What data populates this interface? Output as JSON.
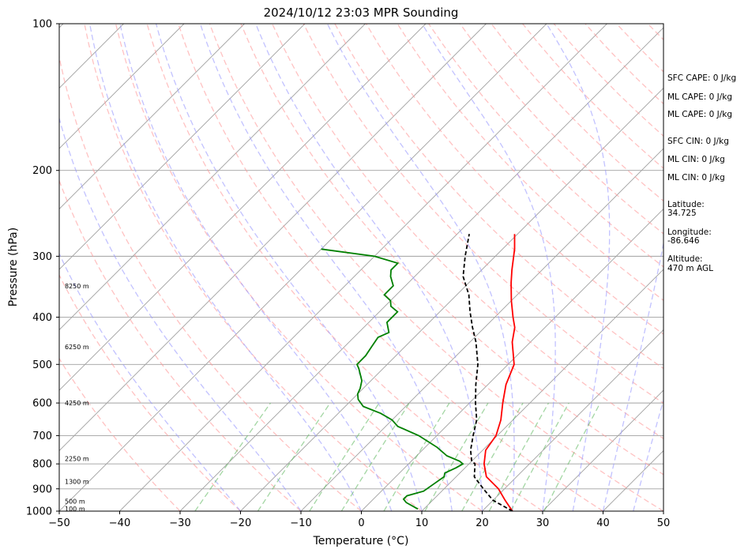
{
  "chart_data": {
    "type": "line",
    "title": "2024/10/12 23:03 MPR Sounding",
    "xlabel": "Temperature (°C)",
    "ylabel": "Pressure (hPa)",
    "xlim": [
      -50,
      50
    ],
    "ylim": [
      1000,
      100
    ],
    "y_scale": "log",
    "x_ticks": [
      "−50",
      "−40",
      "−30",
      "−20",
      "−10",
      "0",
      "10",
      "20",
      "30",
      "40",
      "50"
    ],
    "y_ticks": [
      "100",
      "200",
      "300",
      "400",
      "500",
      "600",
      "700",
      "800",
      "900",
      "1000"
    ],
    "colors": {
      "temperature": "#ff0000",
      "dewpoint": "#008000",
      "parcel": "#000000",
      "dry_adiabats": "#ff9999",
      "moist_adiabats": "#9999ff",
      "mixing_ratio": "#66bb66",
      "isotherms": "#a0a0a0",
      "isobars": "#a0a0a0"
    },
    "series": [
      {
        "key": "temperature",
        "points": [
          [
            25,
            1000
          ],
          [
            22,
            950
          ],
          [
            19,
            900
          ],
          [
            15,
            850
          ],
          [
            12.5,
            800
          ],
          [
            10.5,
            750
          ],
          [
            9.8,
            700
          ],
          [
            8,
            650
          ],
          [
            5.5,
            600
          ],
          [
            3,
            550
          ],
          [
            1,
            500
          ],
          [
            -3,
            450
          ],
          [
            -5,
            420
          ],
          [
            -7,
            400
          ],
          [
            -10,
            370
          ],
          [
            -13,
            340
          ],
          [
            -15,
            320
          ],
          [
            -18,
            290
          ],
          [
            -20.5,
            270
          ]
        ]
      },
      {
        "key": "dewpoint",
        "points": [
          [
            9,
            990
          ],
          [
            8,
            980
          ],
          [
            6,
            960
          ],
          [
            5,
            945
          ],
          [
            5,
            930
          ],
          [
            7,
            910
          ],
          [
            7.5,
            880
          ],
          [
            8,
            850
          ],
          [
            7.5,
            835
          ],
          [
            8.5,
            815
          ],
          [
            9,
            800
          ],
          [
            8,
            790
          ],
          [
            5,
            770
          ],
          [
            2,
            740
          ],
          [
            -3,
            700
          ],
          [
            -8,
            670
          ],
          [
            -10,
            650
          ],
          [
            -13,
            630
          ],
          [
            -17,
            610
          ],
          [
            -19,
            590
          ],
          [
            -20,
            575
          ],
          [
            -20.5,
            560
          ],
          [
            -21.5,
            540
          ],
          [
            -24,
            510
          ],
          [
            -25,
            500
          ],
          [
            -25,
            480
          ],
          [
            -25.5,
            460
          ],
          [
            -26,
            440
          ],
          [
            -25,
            430
          ],
          [
            -27,
            410
          ],
          [
            -27,
            390
          ],
          [
            -29,
            380
          ],
          [
            -30,
            370
          ],
          [
            -32,
            360
          ],
          [
            -32,
            345
          ],
          [
            -34,
            330
          ],
          [
            -35,
            320
          ],
          [
            -35,
            310
          ],
          [
            -40,
            300
          ],
          [
            -50,
            290
          ]
        ]
      },
      {
        "key": "parcel",
        "points": [
          [
            25,
            1000
          ],
          [
            20,
            950
          ],
          [
            16.5,
            900
          ],
          [
            13,
            850
          ],
          [
            11,
            800
          ],
          [
            10,
            790
          ],
          [
            8,
            750
          ],
          [
            6,
            700
          ],
          [
            4,
            650
          ],
          [
            1,
            600
          ],
          [
            -2,
            550
          ],
          [
            -5,
            500
          ],
          [
            -9,
            450
          ],
          [
            -12,
            420
          ],
          [
            -15,
            390
          ],
          [
            -18,
            360
          ],
          [
            -22,
            330
          ],
          [
            -25,
            300
          ],
          [
            -28,
            270
          ]
        ]
      }
    ],
    "height_labels": [
      {
        "text": "100 m",
        "p": 988
      },
      {
        "text": "500 m",
        "p": 955
      },
      {
        "text": "1300 m",
        "p": 870
      },
      {
        "text": "2250 m",
        "p": 780
      },
      {
        "text": "4250 m",
        "p": 600
      },
      {
        "text": "6250 m",
        "p": 460
      },
      {
        "text": "8250 m",
        "p": 345
      }
    ],
    "side_text": [
      "SFC CAPE: 0 J/kg",
      "ML CAPE: 0 J/kg",
      "ML CAPE: 0 J/kg",
      "SFC CIN: 0 J/kg",
      "ML CIN: 0 J/kg",
      "ML CIN: 0 J/kg",
      "Latitude:",
      "34.725",
      "Longitude:",
      "-86.646",
      "Altitude:",
      "470 m AGL"
    ]
  }
}
